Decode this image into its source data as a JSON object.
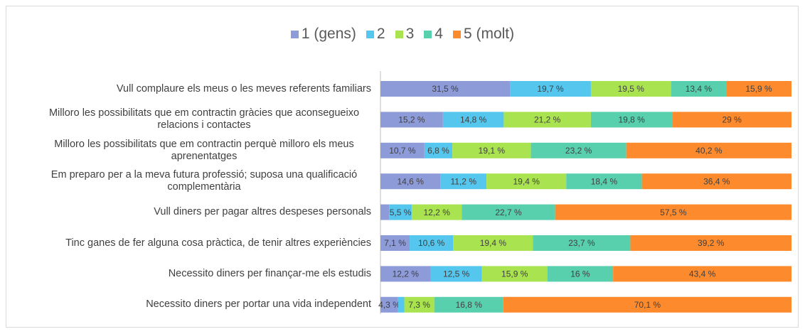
{
  "chart_data": {
    "type": "stacked_bar_horizontal",
    "categories": [
      "Vull complaure els meus o les meves referents familiars",
      "Milloro les possibilitats que em contractin gràcies que aconsegueixo relacions i contactes",
      "Milloro les possibilitats que em contractin perquè milloro els meus aprenentatges",
      "Em preparo per a la meva futura professió; suposa una qualificació complementària",
      "Vull diners per pagar altres despeses personals",
      "Tinc ganes de fer alguna cosa pràctica, de tenir altres experiències",
      "Necessito diners per finançar-me els estudis",
      "Necessito diners per portar una vida independent"
    ],
    "series": [
      {
        "name": "1 (gens)",
        "color": "#8e9bd9",
        "values": [
          31.5,
          15.2,
          10.7,
          14.6,
          2.1,
          7.1,
          12.2,
          4.3
        ],
        "value_labels": [
          "31,5 %",
          "15,2 %",
          "10,7 %",
          "14,6 %",
          null,
          "7,1 %",
          "12,2 %",
          "4,3 %"
        ]
      },
      {
        "name": "2",
        "color": "#55c6ee",
        "values": [
          19.7,
          14.8,
          6.8,
          11.2,
          5.5,
          10.6,
          12.5,
          1.5
        ],
        "value_labels": [
          "19,7 %",
          "14,8 %",
          "6,8 %",
          "11,2 %",
          "5,5 %",
          "10,6 %",
          "12,5 %",
          null
        ]
      },
      {
        "name": "3",
        "color": "#a9e34f",
        "values": [
          19.5,
          21.2,
          19.1,
          19.4,
          12.2,
          19.4,
          15.9,
          7.3
        ],
        "value_labels": [
          "19,5 %",
          "21,2 %",
          "19,1 %",
          "19,4 %",
          "12,2 %",
          "19,4 %",
          "15,9 %",
          "7,3 %"
        ]
      },
      {
        "name": "4",
        "color": "#58d0ae",
        "values": [
          13.4,
          19.8,
          23.2,
          18.4,
          22.7,
          23.7,
          16,
          16.8
        ],
        "value_labels": [
          "13,4 %",
          "19,8 %",
          "23,2 %",
          "18,4 %",
          "22,7 %",
          "23,7 %",
          "16 %",
          "16,8 %"
        ]
      },
      {
        "name": "5 (molt)",
        "color": "#fd8a2c",
        "values": [
          15.9,
          29,
          40.2,
          36.4,
          57.5,
          39.2,
          43.4,
          70.1
        ],
        "value_labels": [
          "15,9 %",
          "29 %",
          "40,2 %",
          "36,4 %",
          "57,5 %",
          "39,2 %",
          "43,4 %",
          "70,1 %"
        ]
      }
    ],
    "legend": "top"
  }
}
